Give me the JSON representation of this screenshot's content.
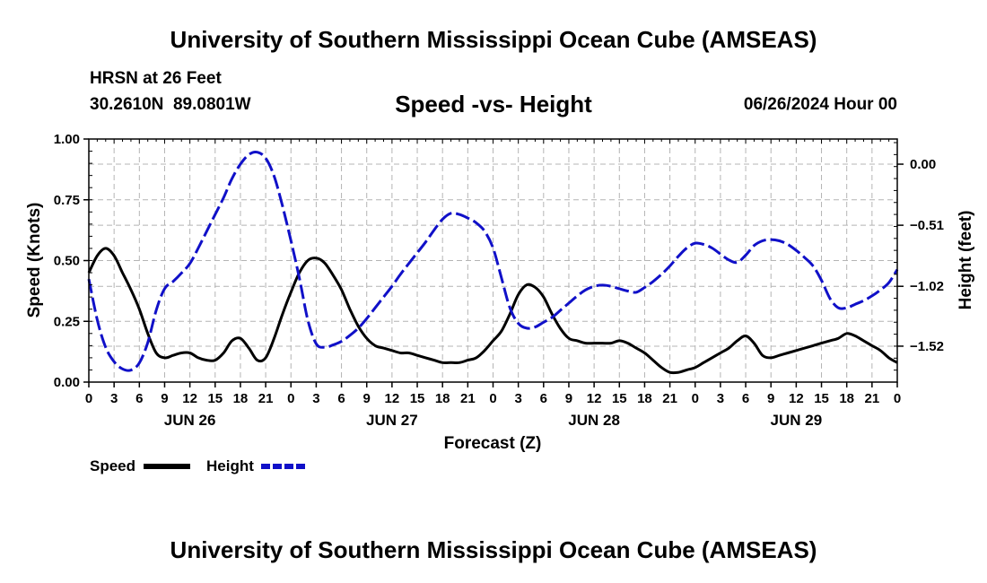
{
  "header": {
    "title": "University of Southern Mississippi Ocean Cube (AMSEAS)",
    "station": "HRSN at 26 Feet",
    "lat": "30.2610N",
    "lon": "89.0801W",
    "timestamp": "06/26/2024 Hour 00"
  },
  "footer": {
    "title": "University of Southern Mississippi Ocean Cube (AMSEAS)"
  },
  "chart_data": {
    "type": "line",
    "title": "Speed -vs- Height",
    "xlabel": "Forecast (Z)",
    "ylabel_left": "Speed (Knots)",
    "ylabel_right": "Height (feet)",
    "x_range": [
      0,
      96
    ],
    "x_ticks": [
      0,
      3,
      6,
      9,
      12,
      15,
      18,
      21,
      24,
      27,
      30,
      33,
      36,
      39,
      42,
      45,
      48,
      51,
      54,
      57,
      60,
      63,
      66,
      69,
      72,
      75,
      78,
      81,
      84,
      87,
      90,
      93,
      96
    ],
    "x_tick_labels": [
      "0",
      "3",
      "6",
      "9",
      "12",
      "15",
      "18",
      "21",
      "0",
      "3",
      "6",
      "9",
      "12",
      "15",
      "18",
      "21",
      "0",
      "3",
      "6",
      "9",
      "12",
      "15",
      "18",
      "21",
      "0",
      "3",
      "6",
      "9",
      "12",
      "15",
      "18",
      "21",
      "0"
    ],
    "day_labels": [
      {
        "label": "JUN 26",
        "hour": 12
      },
      {
        "label": "JUN 27",
        "hour": 36
      },
      {
        "label": "JUN 28",
        "hour": 60
      },
      {
        "label": "JUN 29",
        "hour": 84
      }
    ],
    "y_left_range": [
      0,
      1
    ],
    "y_left_ticks": [
      "0.00",
      "0.25",
      "0.50",
      "0.75",
      "1.00"
    ],
    "y_right_range": [
      -1.82,
      0.21
    ],
    "y_right_ticks": [
      "0.00",
      "−0.51",
      "−1.02",
      "−1.52"
    ],
    "grid": true,
    "legend_position": "bottom-left",
    "series": [
      {
        "name": "Speed",
        "axis": "left",
        "color": "#000000",
        "style": "solid",
        "x": [
          0,
          1,
          2,
          3,
          4,
          5,
          6,
          7,
          8,
          9,
          10,
          11,
          12,
          13,
          14,
          15,
          16,
          17,
          18,
          19,
          20,
          21,
          22,
          23,
          24,
          25,
          26,
          27,
          28,
          29,
          30,
          31,
          32,
          33,
          34,
          35,
          36,
          37,
          38,
          39,
          40,
          41,
          42,
          43,
          44,
          45,
          46,
          47,
          48,
          49,
          50,
          51,
          52,
          53,
          54,
          55,
          56,
          57,
          58,
          59,
          60,
          61,
          62,
          63,
          64,
          65,
          66,
          67,
          68,
          69,
          70,
          71,
          72,
          73,
          74,
          75,
          76,
          77,
          78,
          79,
          80,
          81,
          82,
          83,
          84,
          85,
          86,
          87,
          88,
          89,
          90,
          91,
          92,
          93,
          94,
          95,
          96
        ],
        "values": [
          0.45,
          0.52,
          0.55,
          0.52,
          0.45,
          0.38,
          0.3,
          0.2,
          0.12,
          0.1,
          0.11,
          0.12,
          0.12,
          0.1,
          0.09,
          0.09,
          0.12,
          0.17,
          0.18,
          0.14,
          0.09,
          0.1,
          0.18,
          0.28,
          0.37,
          0.45,
          0.5,
          0.51,
          0.49,
          0.44,
          0.38,
          0.3,
          0.23,
          0.18,
          0.15,
          0.14,
          0.13,
          0.12,
          0.12,
          0.11,
          0.1,
          0.09,
          0.08,
          0.08,
          0.08,
          0.09,
          0.1,
          0.13,
          0.17,
          0.21,
          0.28,
          0.36,
          0.4,
          0.39,
          0.35,
          0.28,
          0.22,
          0.18,
          0.17,
          0.16,
          0.16,
          0.16,
          0.16,
          0.17,
          0.16,
          0.14,
          0.12,
          0.09,
          0.06,
          0.04,
          0.04,
          0.05,
          0.06,
          0.08,
          0.1,
          0.12,
          0.14,
          0.17,
          0.19,
          0.16,
          0.11,
          0.1,
          0.11,
          0.12,
          0.13,
          0.14,
          0.15,
          0.16,
          0.17,
          0.18,
          0.2,
          0.19,
          0.17,
          0.15,
          0.13,
          0.1,
          0.08
        ]
      },
      {
        "name": "Height",
        "axis": "right",
        "color": "#1010c8",
        "style": "dashed",
        "x": [
          0,
          1,
          2,
          3,
          4,
          5,
          6,
          7,
          8,
          9,
          10,
          11,
          12,
          13,
          14,
          15,
          16,
          17,
          18,
          19,
          20,
          21,
          22,
          23,
          24,
          25,
          26,
          27,
          28,
          29,
          30,
          31,
          32,
          33,
          34,
          35,
          36,
          37,
          38,
          39,
          40,
          41,
          42,
          43,
          44,
          45,
          46,
          47,
          48,
          49,
          50,
          51,
          52,
          53,
          54,
          55,
          56,
          57,
          58,
          59,
          60,
          61,
          62,
          63,
          64,
          65,
          66,
          67,
          68,
          69,
          70,
          71,
          72,
          73,
          74,
          75,
          76,
          77,
          78,
          79,
          80,
          81,
          82,
          83,
          84,
          85,
          86,
          87,
          88,
          89,
          90,
          91,
          92,
          93,
          94,
          95,
          96
        ],
        "values": [
          -0.96,
          -1.3,
          -1.53,
          -1.65,
          -1.71,
          -1.72,
          -1.66,
          -1.49,
          -1.22,
          -1.04,
          -0.98,
          -0.91,
          -0.83,
          -0.7,
          -0.56,
          -0.42,
          -0.28,
          -0.12,
          0.0,
          0.08,
          0.1,
          0.05,
          -0.1,
          -0.35,
          -0.64,
          -0.95,
          -1.3,
          -1.5,
          -1.53,
          -1.51,
          -1.48,
          -1.43,
          -1.37,
          -1.29,
          -1.2,
          -1.11,
          -1.02,
          -0.92,
          -0.83,
          -0.74,
          -0.65,
          -0.55,
          -0.46,
          -0.41,
          -0.42,
          -0.45,
          -0.49,
          -0.56,
          -0.7,
          -0.95,
          -1.2,
          -1.33,
          -1.37,
          -1.36,
          -1.32,
          -1.28,
          -1.22,
          -1.16,
          -1.1,
          -1.05,
          -1.02,
          -1.01,
          -1.02,
          -1.04,
          -1.06,
          -1.07,
          -1.03,
          -0.98,
          -0.92,
          -0.85,
          -0.77,
          -0.7,
          -0.66,
          -0.67,
          -0.7,
          -0.75,
          -0.8,
          -0.82,
          -0.76,
          -0.68,
          -0.64,
          -0.63,
          -0.64,
          -0.67,
          -0.72,
          -0.78,
          -0.85,
          -0.97,
          -1.12,
          -1.2,
          -1.2,
          -1.17,
          -1.14,
          -1.1,
          -1.05,
          -0.99,
          -0.88
        ]
      }
    ]
  }
}
